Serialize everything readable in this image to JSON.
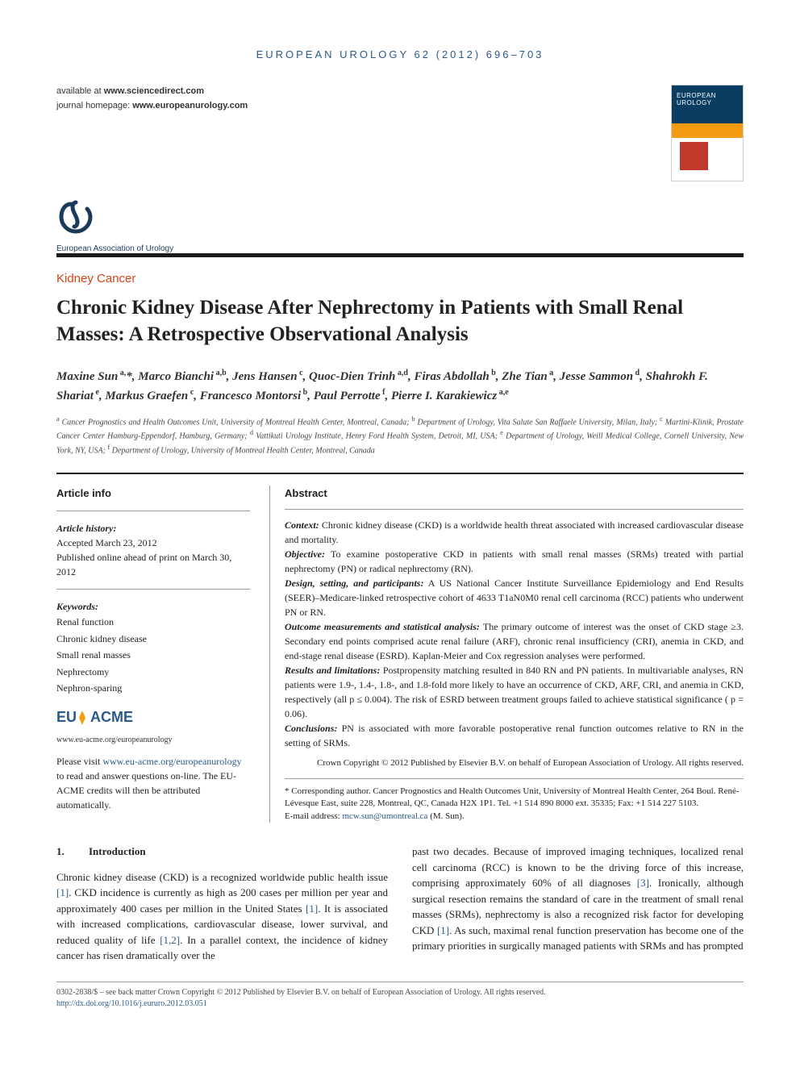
{
  "running_head": "EUROPEAN UROLOGY 62 (2012) 696–703",
  "availability": {
    "line1_prefix": "available at ",
    "line1_url": "www.sciencedirect.com",
    "line2_prefix": "journal homepage: ",
    "line2_url": "www.europeanurology.com"
  },
  "logo_text": "European Association of Urology",
  "section_label": "Kidney Cancer",
  "title": "Chronic Kidney Disease After Nephrectomy in Patients with Small Renal Masses: A Retrospective Observational Analysis",
  "authors_html": "Maxine Sun<sup> a,</sup>*, Marco Bianchi<sup> a,b</sup>, Jens Hansen<sup> c</sup>, Quoc-Dien Trinh<sup> a,d</sup>, Firas Abdollah<sup> b</sup>, Zhe Tian<sup> a</sup>, Jesse Sammon<sup> d</sup>, Shahrokh F. Shariat<sup> e</sup>, Markus Graefen<sup> c</sup>, Francesco Montorsi<sup> b</sup>, Paul Perrotte<sup> f</sup>, Pierre I. Karakiewicz<sup> a,e</sup>",
  "affiliations_html": "<sup>a</sup> Cancer Prognostics and Health Outcomes Unit, University of Montreal Health Center, Montreal, Canada; <sup>b</sup> Department of Urology, Vita Salute San Raffaele University, Milan, Italy; <sup>c</sup> Martini-Klinik, Prostate Cancer Center Hamburg-Eppendorf, Hamburg, Germany; <sup>d</sup> Vattikuti Urology Institute, Henry Ford Health System, Detroit, MI, USA; <sup>e</sup> Department of Urology, Weill Medical College, Cornell University, New York, NY, USA; <sup>f</sup> Department of Urology, University of Montreal Health Center, Montreal, Canada",
  "article_info": {
    "head": "Article info",
    "history_label": "Article history:",
    "accepted": "Accepted March 23, 2012",
    "published": "Published online ahead of print on March 30, 2012",
    "keywords_label": "Keywords:",
    "keywords": [
      "Renal function",
      "Chronic kidney disease",
      "Small renal masses",
      "Nephrectomy",
      "Nephron-sparing"
    ],
    "acme_url": "www.eu-acme.org/europeanurology",
    "acme_text_pre": "Please visit ",
    "acme_link": "www.eu-acme.org/europeanurology",
    "acme_text_post": " to read and answer questions on-line. The EU-ACME credits will then be attributed automatically."
  },
  "abstract": {
    "head": "Abstract",
    "context_label": "Context:",
    "context": " Chronic kidney disease (CKD) is a worldwide health threat associated with increased cardiovascular disease and mortality.",
    "objective_label": "Objective:",
    "objective": " To examine postoperative CKD in patients with small renal masses (SRMs) treated with partial nephrectomy (PN) or radical nephrectomy (RN).",
    "design_label": "Design, setting, and participants:",
    "design": " A US National Cancer Institute Surveillance Epidemiology and End Results (SEER)–Medicare-linked retrospective cohort of 4633 T1aN0M0 renal cell carcinoma (RCC) patients who underwent PN or RN.",
    "outcome_label": "Outcome measurements and statistical analysis:",
    "outcome": " The primary outcome of interest was the onset of CKD stage ≥3. Secondary end points comprised acute renal failure (ARF), chronic renal insufficiency (CRI), anemia in CKD, and end-stage renal disease (ESRD). Kaplan-Meier and Cox regression analyses were performed.",
    "results_label": "Results and limitations:",
    "results": " Postpropensity matching resulted in 840 RN and PN patients. In multivariable analyses, RN patients were 1.9-, 1.4-, 1.8-, and 1.8-fold more likely to have an occurrence of CKD, ARF, CRI, and anemia in CKD, respectively (all p ≤ 0.004). The risk of ESRD between treatment groups failed to achieve statistical significance ( p = 0.06).",
    "conclusions_label": "Conclusions:",
    "conclusions": " PN is associated with more favorable postoperative renal function outcomes relative to RN in the setting of SRMs.",
    "copyright": "Crown Copyright © 2012 Published by Elsevier B.V. on behalf of European Association of Urology. All rights reserved."
  },
  "corresponding": {
    "text": "* Corresponding author. Cancer Prognostics and Health Outcomes Unit, University of Montreal Health Center, 264 Boul. René-Lévesque East, suite 228, Montreal, QC, Canada H2X 1P1. Tel. +1 514 890 8000 ext. 35335; Fax: +1 514 227 5103.",
    "email_label": "E-mail address: ",
    "email": "mcw.sun@umontreal.ca",
    "email_suffix": " (M. Sun)."
  },
  "body": {
    "sec_num": "1.",
    "sec_title": "Introduction",
    "col1": "Chronic kidney disease (CKD) is a recognized worldwide public health issue [1]. CKD incidence is currently as high as 200 cases per million per year and approximately 400 cases per million in the United States [1]. It is associated with increased complications, cardiovascular disease, lower survival, and reduced quality of life [1,2]. In a parallel context, the incidence of kidney cancer has risen dramatically over the",
    "col2": "past two decades. Because of improved imaging techniques, localized renal cell carcinoma (RCC) is known to be the driving force of this increase, comprising approximately 60% of all diagnoses [3]. Ironically, although surgical resection remains the standard of care in the treatment of small renal masses (SRMs), nephrectomy is also a recognized risk factor for developing CKD [1]. As such, maximal renal function preservation has become one of the primary priorities in surgically managed patients with SRMs and has prompted"
  },
  "footer": {
    "line1": "0302-2838/$ – see back matter Crown Copyright © 2012 Published by Elsevier B.V. on behalf of European Association of Urology. All rights reserved.",
    "doi": "http://dx.doi.org/10.1016/j.eururo.2012.03.051"
  },
  "colors": {
    "accent_blue": "#2a5a8a",
    "accent_orange": "#d84315",
    "rule_dark": "#1a1a1a"
  }
}
